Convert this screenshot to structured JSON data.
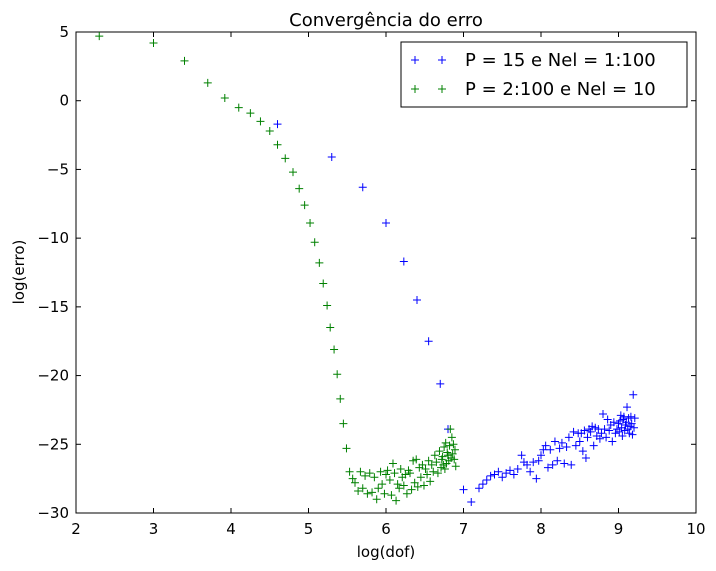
{
  "chart_data": {
    "type": "scatter",
    "title": "Convergência do erro",
    "xlabel": "log(dof)",
    "ylabel": "log(erro)",
    "xlim": [
      2,
      10
    ],
    "ylim": [
      -30,
      5
    ],
    "xticks": [
      2,
      3,
      4,
      5,
      6,
      7,
      8,
      9,
      10
    ],
    "xtick_labels": [
      "2",
      "3",
      "4",
      "5",
      "6",
      "7",
      "8",
      "9",
      "10"
    ],
    "yticks": [
      5,
      0,
      -5,
      -10,
      -15,
      -20,
      -25,
      -30
    ],
    "ytick_labels": [
      "5",
      "0",
      "−5",
      "−10",
      "−15",
      "−20",
      "−25",
      "−30"
    ],
    "marker": "+",
    "grid": false,
    "legend_position": "top-right",
    "series": [
      {
        "name": "P = 15 e Nel = 1:100",
        "color": "#0000ff",
        "x": [
          4.6,
          5.3,
          5.7,
          6.0,
          6.23,
          6.4,
          6.55,
          6.7,
          6.8,
          7.0,
          7.1,
          7.2,
          7.25,
          7.3,
          7.35,
          7.4,
          7.45,
          7.5,
          7.55,
          7.6,
          7.65,
          7.7,
          7.75,
          7.78,
          7.82,
          7.86,
          7.9,
          7.94,
          7.97,
          8.0,
          8.03,
          8.06,
          8.09,
          8.12,
          8.15,
          8.18,
          8.21,
          8.24,
          8.27,
          8.3,
          8.33,
          8.36,
          8.39,
          8.42,
          8.45,
          8.48,
          8.5,
          8.52,
          8.54,
          8.56,
          8.58,
          8.6,
          8.62,
          8.64,
          8.66,
          8.68,
          8.7,
          8.72,
          8.74,
          8.76,
          8.78,
          8.8,
          8.82,
          8.84,
          8.86,
          8.88,
          8.9,
          8.92,
          8.94,
          8.96,
          8.98,
          9.0,
          9.01,
          9.02,
          9.03,
          9.04,
          9.05,
          9.06,
          9.07,
          9.08,
          9.09,
          9.1,
          9.11,
          9.12,
          9.13,
          9.14,
          9.15,
          9.16,
          9.17,
          9.18,
          9.19,
          9.2,
          9.21
        ],
        "y": [
          -1.7,
          -4.1,
          -6.3,
          -8.9,
          -11.7,
          -14.5,
          -17.5,
          -20.6,
          -23.9,
          -28.3,
          -29.2,
          -28.2,
          -27.9,
          -27.6,
          -27.3,
          -27.2,
          -27.0,
          -27.4,
          -27.1,
          -26.9,
          -27.2,
          -26.8,
          -25.8,
          -26.3,
          -26.5,
          -27.0,
          -26.3,
          -27.5,
          -26.2,
          -25.8,
          -25.4,
          -25.1,
          -26.7,
          -25.4,
          -26.5,
          -24.8,
          -26.2,
          -25.3,
          -24.9,
          -26.4,
          -25.2,
          -24.5,
          -26.5,
          -24.1,
          -25.1,
          -24.2,
          -24.8,
          -24.2,
          -25.5,
          -24.0,
          -26.0,
          -24.5,
          -23.9,
          -24.1,
          -23.7,
          -25.1,
          -23.8,
          -24.4,
          -23.9,
          -24.6,
          -24.2,
          -22.8,
          -23.9,
          -24.5,
          -23.2,
          -24.0,
          -23.6,
          -24.8,
          -23.4,
          -24.2,
          -23.9,
          -23.5,
          -24.1,
          -23.3,
          -22.9,
          -23.8,
          -24.4,
          -23.2,
          -23.0,
          -24.0,
          -23.6,
          -23.4,
          -22.3,
          -23.9,
          -23.1,
          -24.2,
          -23.7,
          -23.0,
          -23.5,
          -24.3,
          -21.4,
          -23.8,
          -23.1
        ]
      },
      {
        "name": "P = 2:100 e Nel = 10",
        "color": "#008000",
        "x": [
          2.3,
          3.0,
          3.4,
          3.7,
          3.92,
          4.1,
          4.25,
          4.38,
          4.5,
          4.6,
          4.7,
          4.8,
          4.88,
          4.95,
          5.02,
          5.08,
          5.14,
          5.19,
          5.24,
          5.28,
          5.33,
          5.37,
          5.41,
          5.45,
          5.49,
          5.53,
          5.57,
          5.6,
          5.64,
          5.67,
          5.7,
          5.73,
          5.76,
          5.79,
          5.82,
          5.85,
          5.88,
          5.9,
          5.93,
          5.95,
          5.98,
          6.0,
          6.02,
          6.05,
          6.07,
          6.09,
          6.11,
          6.13,
          6.15,
          6.17,
          6.19,
          6.21,
          6.23,
          6.25,
          6.27,
          6.29,
          6.31,
          6.33,
          6.35,
          6.37,
          6.39,
          6.41,
          6.43,
          6.45,
          6.47,
          6.49,
          6.51,
          6.53,
          6.55,
          6.57,
          6.59,
          6.61,
          6.63,
          6.65,
          6.67,
          6.69,
          6.71,
          6.72,
          6.73,
          6.74,
          6.75,
          6.76,
          6.77,
          6.78,
          6.79,
          6.8,
          6.81,
          6.82,
          6.83,
          6.84,
          6.85,
          6.86,
          6.87,
          6.88,
          6.89,
          6.9
        ],
        "y": [
          4.7,
          4.2,
          2.9,
          1.3,
          0.2,
          -0.5,
          -0.9,
          -1.5,
          -2.2,
          -3.2,
          -4.2,
          -5.2,
          -6.4,
          -7.6,
          -8.9,
          -10.3,
          -11.8,
          -13.3,
          -14.9,
          -16.5,
          -18.1,
          -19.9,
          -21.7,
          -23.5,
          -25.3,
          -27.0,
          -27.5,
          -27.8,
          -28.4,
          -27.0,
          -28.2,
          -27.3,
          -28.6,
          -27.1,
          -28.5,
          -27.4,
          -29.0,
          -28.2,
          -27.0,
          -27.9,
          -28.6,
          -27.2,
          -26.9,
          -27.6,
          -28.7,
          -26.4,
          -27.1,
          -29.1,
          -27.9,
          -28.2,
          -26.8,
          -27.4,
          -28.0,
          -27.2,
          -28.6,
          -26.9,
          -27.1,
          -28.3,
          -26.2,
          -27.8,
          -26.1,
          -28.1,
          -26.7,
          -27.4,
          -26.5,
          -28.0,
          -26.8,
          -27.2,
          -26.2,
          -27.7,
          -26.5,
          -27.0,
          -25.8,
          -26.3,
          -27.1,
          -25.5,
          -26.7,
          -26.1,
          -25.9,
          -26.5,
          -25.2,
          -26.8,
          -24.9,
          -26.4,
          -25.6,
          -25.8,
          -26.2,
          -25.1,
          -23.9,
          -26.0,
          -24.5,
          -25.7,
          -25.0,
          -26.1,
          -25.4,
          -26.6
        ]
      }
    ]
  }
}
